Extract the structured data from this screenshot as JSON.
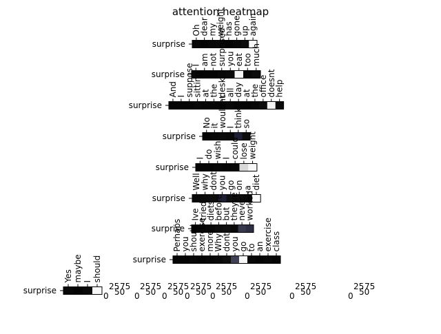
{
  "chart_data": {
    "type": "heatmap",
    "title": "attention heatmap",
    "colormap": "grayscale, dark = low, white = high",
    "grid": false,
    "rows": [
      {
        "label": "surprise",
        "tokens": [
          "Oh",
          "dear",
          "my",
          "weight",
          "has",
          "gone",
          "up",
          "again"
        ],
        "values": [
          0.03,
          0.02,
          0.03,
          0.04,
          0.02,
          0.03,
          0.05,
          0.98
        ]
      },
      {
        "label": "surprise",
        "tokens": [
          "I",
          "am",
          "not",
          "surprised",
          "you",
          "eat",
          "too",
          "much"
        ],
        "values": [
          0.03,
          0.02,
          0.02,
          0.03,
          0.04,
          0.97,
          0.03,
          0.05
        ]
      },
      {
        "label": "surprise",
        "tokens": [
          "And",
          "I",
          "suppose",
          "sitting",
          "at",
          "the",
          "desk",
          "all",
          "day",
          "at",
          "the",
          "office",
          "doesnt",
          "help"
        ],
        "values": [
          0.02,
          0.02,
          0.02,
          0.03,
          0.02,
          0.02,
          0.02,
          0.03,
          0.02,
          0.02,
          0.03,
          0.05,
          0.96,
          0.04
        ]
      },
      {
        "label": "surprise",
        "tokens": [
          "No",
          "it",
          "wouldnt",
          "I",
          "think",
          "so"
        ],
        "values": [
          0.02,
          0.03,
          0.04,
          0.03,
          0.12,
          0.05
        ]
      },
      {
        "label": "surprise",
        "tokens": [
          "I",
          "do",
          "wish",
          "I",
          "could",
          "lose",
          "weight"
        ],
        "values": [
          0.02,
          0.02,
          0.03,
          0.02,
          0.03,
          0.85,
          0.97
        ]
      },
      {
        "label": "surprise",
        "tokens": [
          "Well",
          "why",
          "dont",
          "you",
          "go",
          "on",
          "a",
          "diet"
        ],
        "values": [
          0.03,
          0.04,
          0.05,
          0.12,
          0.06,
          0.05,
          0.04,
          0.98
        ]
      },
      {
        "label": "surprise",
        "tokens": [
          "Ive",
          "tried",
          "diets",
          "before",
          "but",
          "theyve",
          "never",
          "worked"
        ],
        "values": [
          0.02,
          0.03,
          0.03,
          0.05,
          0.06,
          0.04,
          0.22,
          0.18
        ]
      },
      {
        "label": "surprise",
        "tokens": [
          "Perhaps",
          "you",
          "should",
          "exercise",
          "more",
          "Why",
          "dont",
          "you",
          "go",
          "to",
          "an",
          "exercise",
          "class"
        ],
        "values": [
          0.02,
          0.02,
          0.03,
          0.02,
          0.03,
          0.04,
          0.06,
          0.25,
          0.97,
          0.03,
          0.02,
          0.03,
          0.02
        ]
      },
      {
        "label": "surprise",
        "tokens": [
          "Yes",
          "maybe",
          "I",
          "should"
        ],
        "values": [
          0.03,
          0.02,
          0.04,
          0.97
        ]
      }
    ],
    "overlapping_tick_labels": [
      "0",
      "25",
      "50",
      "75"
    ]
  }
}
